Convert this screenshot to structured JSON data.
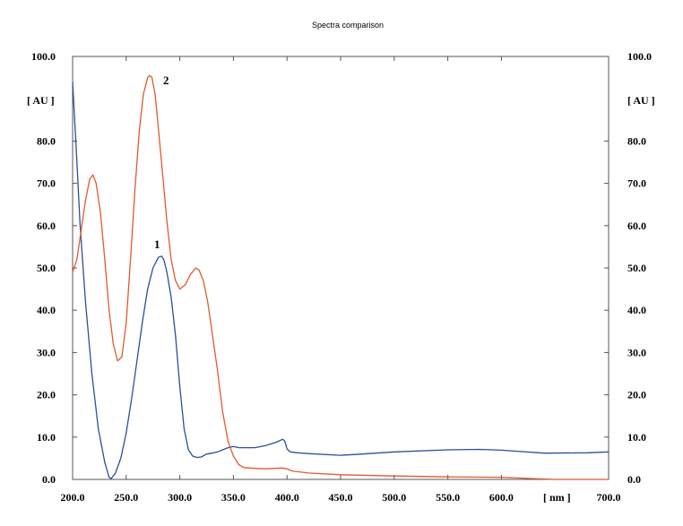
{
  "chart_data": {
    "type": "line",
    "title": "Spectra comparison",
    "xlabel": "[ nm ]",
    "ylabel_left": "[ AU ]",
    "ylabel_right": "[ AU ]",
    "xlim": [
      200,
      700
    ],
    "ylim": [
      0,
      100
    ],
    "x_ticks": [
      "200.0",
      "250.0",
      "300.0",
      "350.0",
      "400.0",
      "450.0",
      "500.0",
      "550.0",
      "600.0",
      "700.0"
    ],
    "x_tick_values": [
      200,
      250,
      300,
      350,
      400,
      450,
      500,
      550,
      600,
      700
    ],
    "y_ticks": [
      "0.0",
      "10.0",
      "20.0",
      "30.0",
      "40.0",
      "50.0",
      "60.0",
      "70.0",
      "80.0",
      "100.0"
    ],
    "y_tick_values": [
      0,
      10,
      20,
      30,
      40,
      50,
      60,
      70,
      80,
      100
    ],
    "grid": false,
    "series": [
      {
        "name": "1",
        "color": "#2b4f9c",
        "x": [
          200,
          203,
          207,
          212,
          218,
          224,
          230,
          234,
          236,
          240,
          245,
          250,
          255,
          260,
          265,
          270,
          275,
          280,
          283,
          285,
          288,
          292,
          296,
          300,
          304,
          308,
          312,
          316,
          320,
          325,
          330,
          335,
          340,
          345,
          350,
          355,
          360,
          370,
          380,
          390,
          396,
          398,
          400,
          403,
          410,
          420,
          450,
          470,
          500,
          550,
          580,
          600,
          640,
          680,
          700
        ],
        "y": [
          94,
          80,
          60,
          42,
          25,
          12,
          4,
          0.5,
          0.2,
          1.5,
          5,
          11,
          19,
          28,
          37,
          45,
          50,
          52.5,
          52.8,
          52,
          49,
          43,
          34,
          22,
          12,
          7,
          5.5,
          5.2,
          5.3,
          6,
          6.2,
          6.5,
          7,
          7.5,
          7.8,
          7.5,
          7.5,
          7.5,
          8,
          8.8,
          9.5,
          9,
          7.2,
          6.5,
          6.3,
          6.1,
          5.7,
          6,
          6.5,
          7,
          7.1,
          6.9,
          6.2,
          6.3,
          6.5
        ]
      },
      {
        "name": "2",
        "color": "#e05a2b",
        "x": [
          200,
          204,
          208,
          212,
          216,
          219,
          222,
          226,
          230,
          234,
          238,
          242,
          246,
          250,
          254,
          258,
          262,
          266,
          270,
          272,
          274,
          277,
          280,
          284,
          288,
          292,
          296,
          300,
          305,
          310,
          315,
          318,
          322,
          326,
          330,
          335,
          340,
          345,
          350,
          355,
          360,
          370,
          380,
          395,
          400,
          405,
          420,
          450,
          500,
          550,
          600,
          630,
          650,
          680,
          700
        ],
        "y": [
          49,
          52,
          59,
          66,
          71,
          72,
          70,
          63,
          52,
          40,
          32,
          28,
          29,
          37,
          52,
          68,
          82,
          91,
          95,
          95.5,
          95,
          91,
          83,
          72,
          61,
          52,
          47,
          45,
          46,
          48.5,
          50,
          49.5,
          47,
          42,
          35,
          26,
          16,
          9,
          5.5,
          3.5,
          2.8,
          2.6,
          2.5,
          2.7,
          2.5,
          2,
          1.5,
          1.1,
          0.8,
          0.6,
          0.5,
          0.2,
          0,
          0,
          0
        ]
      }
    ]
  }
}
